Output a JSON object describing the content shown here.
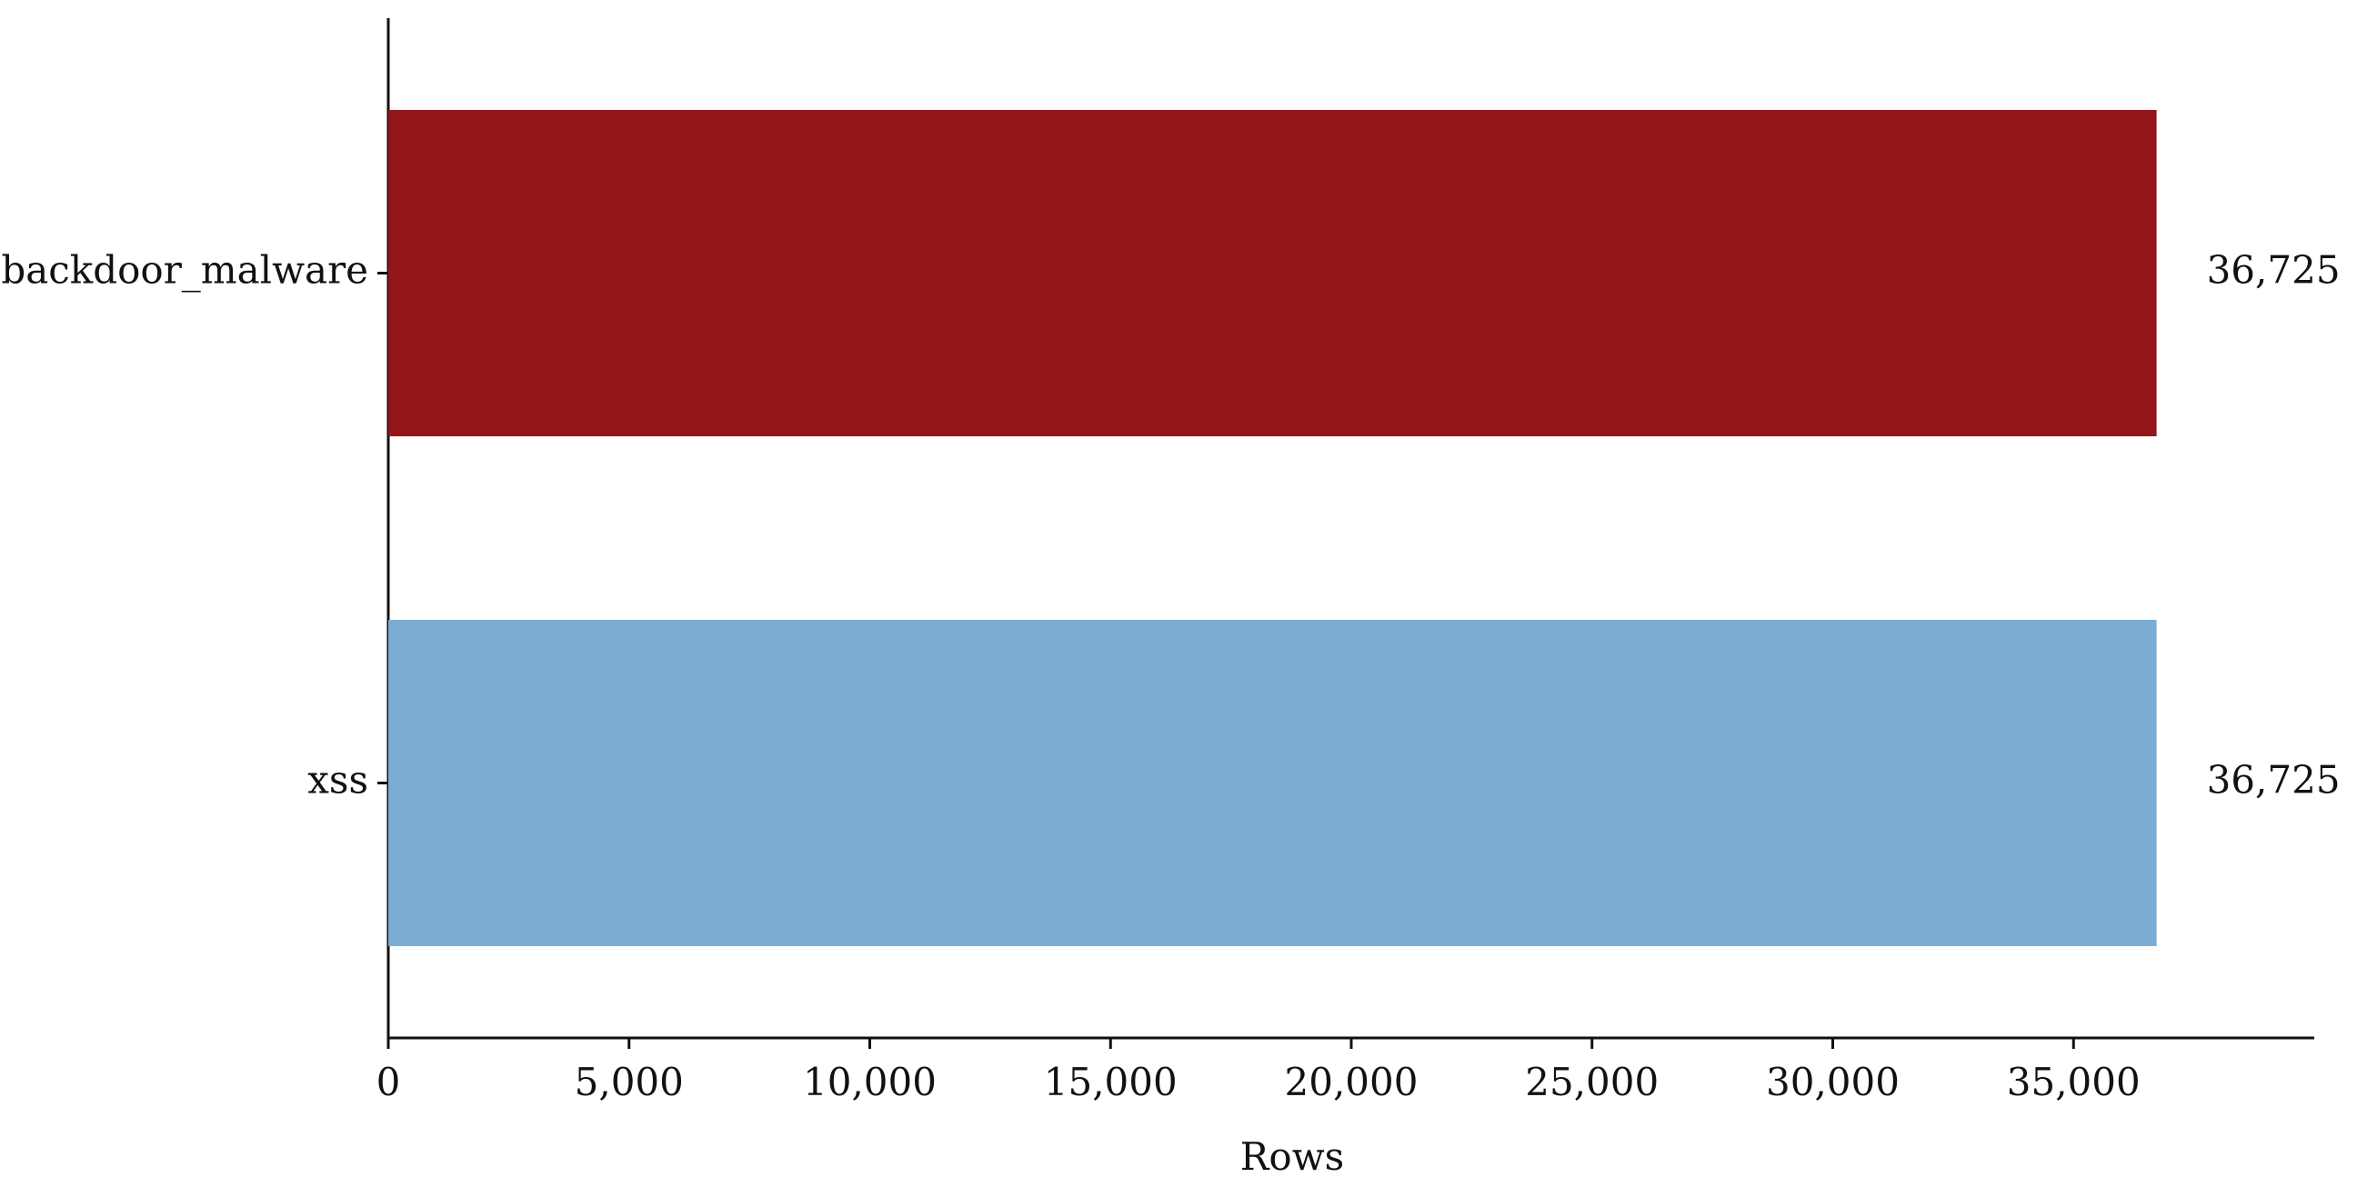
{
  "chart_data": {
    "type": "barh",
    "categories": [
      "backdoor_malware",
      "xss"
    ],
    "values": [
      36725,
      36725
    ],
    "value_labels": [
      "36,725",
      "36,725"
    ],
    "colors": [
      "#931518",
      "#7bacd3"
    ],
    "xlabel": "Rows",
    "xlim": [
      0,
      40000
    ],
    "xticks": [
      0,
      {
        "value": 5000,
        "label": "5,000"
      },
      {
        "value": 10000,
        "label": "10,000"
      },
      {
        "value": 15000,
        "label": "15,000"
      },
      {
        "value": 20000,
        "label": "20,000"
      },
      {
        "value": 25000,
        "label": "25,000"
      },
      {
        "value": 30000,
        "label": "30,000"
      },
      {
        "value": 35000,
        "label": "35,000"
      }
    ],
    "grid": false
  }
}
